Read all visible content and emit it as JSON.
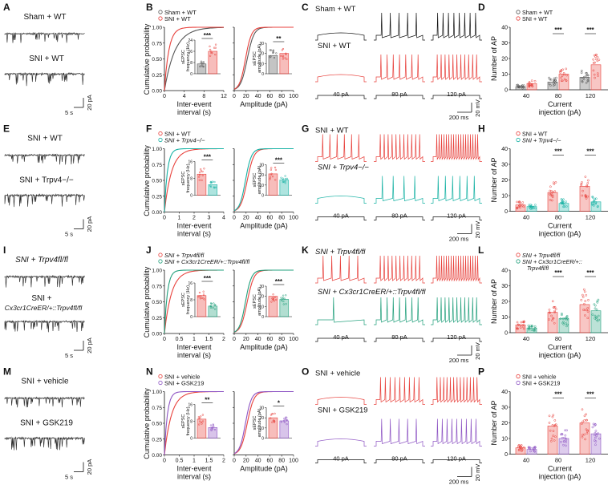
{
  "colors": {
    "sham": "#555555",
    "sni": "#e8413c",
    "ko": "#17b2a4",
    "cko": "#22a07c",
    "gsk": "#8e55c4",
    "black": "#111111"
  },
  "rows": [
    {
      "letters": [
        "A",
        "B",
        "C",
        "D"
      ],
      "traceA": [
        "Sham + WT",
        "SNI + WT"
      ],
      "scaleA": [
        "5 s",
        "20 pA"
      ],
      "cdf": {
        "legend": [
          "Sham + WT",
          "SNI + WT"
        ],
        "legendItalic": false,
        "ylabel": "Cumulative probability",
        "yticks": [
          "0.00",
          "0.25",
          "0.50",
          "0.75",
          "1.00"
        ],
        "xlabel1": [
          "Inter-event",
          "interval (s)"
        ],
        "xticks1": [
          "0",
          "4",
          "8",
          "12"
        ],
        "xlabel2": "Amplitude (pA)",
        "xticks2": [
          "0",
          "20",
          "40",
          "60",
          "80",
          "100"
        ],
        "inset1": {
          "label": [
            "sEPSC",
            "frequency (Hz)"
          ],
          "yticks": [
            "0",
            "8",
            "16",
            "24"
          ],
          "values": [
            7,
            16
          ],
          "sig": "***"
        },
        "inset2": {
          "label": [
            "sEPSC",
            "amplitude (pA)"
          ],
          "yticks": [
            "0",
            "10",
            "20",
            "30"
          ],
          "values": [
            18,
            20
          ],
          "sig": "**"
        }
      },
      "ap": {
        "labels": [
          "Sham + WT",
          "SNI + WT"
        ],
        "labelItalic": false,
        "currents": [
          "40 pA",
          "80 pA",
          "120 pA"
        ],
        "spikes": [
          [
            0,
            5,
            8
          ],
          [
            0,
            7,
            11
          ]
        ],
        "scale": [
          "200 ms",
          "20 mV"
        ]
      },
      "dot": {
        "legend": [
          "Sham + WT",
          "SNI + WT"
        ],
        "legendItalic": false,
        "ylabel": "Number of AP",
        "yticks": [
          "0",
          "10",
          "20",
          "30",
          "40"
        ],
        "xticks": [
          "40",
          "80",
          "120"
        ],
        "xlabel": [
          "Current",
          "injection (pA)"
        ],
        "values": [
          [
            2,
            4
          ],
          [
            5,
            10
          ],
          [
            8,
            16
          ]
        ],
        "sig": [
          "",
          "***",
          "***"
        ]
      },
      "series": [
        "sham",
        "sni"
      ]
    },
    {
      "letters": [
        "E",
        "F",
        "G",
        "H"
      ],
      "traceA": [
        "SNI + WT",
        "SNI + Trpv4−/−"
      ],
      "scaleA": [
        "5 s",
        "20 pA"
      ],
      "cdf": {
        "legend": [
          "SNI + WT",
          "SNI + Trpv4−/−"
        ],
        "legendItalic": true,
        "ylabel": "Cumulative probability",
        "yticks": [
          "0.00",
          "0.25",
          "0.50",
          "0.75",
          "1.00"
        ],
        "xlabel1": [
          "Inter-event",
          "interval (s)"
        ],
        "xticks1": [
          "0",
          "1",
          "2",
          "3",
          "4"
        ],
        "xlabel2": "Amplitude (pA)",
        "xticks2": [
          "0",
          "20",
          "40",
          "60",
          "80",
          "100"
        ],
        "inset1": {
          "label": [
            "sEPSC",
            "frequency (Hz)"
          ],
          "yticks": [
            "0",
            "8",
            "16"
          ],
          "values": [
            10,
            5
          ],
          "sig": "***"
        },
        "inset2": {
          "label": [
            "sEPSC",
            "amplitude (pA)"
          ],
          "yticks": [
            "0",
            "10",
            "20",
            "30"
          ],
          "values": [
            21,
            15
          ],
          "sig": "***"
        }
      },
      "ap": {
        "labels": [
          "SNI + WT",
          "SNI + Trpv4−/−"
        ],
        "labelItalic": true,
        "currents": [
          "40 pA",
          "80 pA",
          "120 pA"
        ],
        "spikes": [
          [
            6,
            11,
            18
          ],
          [
            0,
            4,
            6
          ]
        ],
        "scale": [
          "200 ms",
          "20 mV"
        ]
      },
      "dot": {
        "legend": [
          "SNI + WT",
          "SNI + Trpv4−/−"
        ],
        "legendItalic": true,
        "ylabel": "Number of AP",
        "yticks": [
          "0",
          "10",
          "20",
          "30",
          "40"
        ],
        "xticks": [
          "40",
          "80",
          "120"
        ],
        "xlabel": [
          "Current",
          "injection (pA)"
        ],
        "values": [
          [
            4,
            3
          ],
          [
            12,
            5
          ],
          [
            16,
            6
          ]
        ],
        "sig": [
          "",
          "***",
          "***"
        ]
      },
      "series": [
        "sni",
        "ko"
      ]
    },
    {
      "letters": [
        "I",
        "J",
        "K",
        "L"
      ],
      "traceA": [
        "SNI + Trpv4fl/fl",
        "SNI +",
        "Cx3cr1CreER/+::Trpv4fl/fl"
      ],
      "scaleA": [
        "5 s",
        "20 pA"
      ],
      "cdf": {
        "legend": [
          "SNI + Trpv4fl/fl",
          "SNI + Cx3cr1CreER/+::Trpv4fl/fl"
        ],
        "legendItalic": true,
        "ylabel": "Cumulative probability",
        "yticks": [
          "0.00",
          "0.25",
          "0.50",
          "0.75",
          "1.00"
        ],
        "xlabel1": [
          "Inter-event",
          "interval (s)"
        ],
        "xticks1": [
          "0",
          "0.5",
          "1",
          "1.5",
          "2"
        ],
        "xlabel2": "Amplitude (pA)",
        "xticks2": [
          "0",
          "20",
          "40",
          "60",
          "80",
          "100"
        ],
        "inset1": {
          "label": [
            "sEPSC",
            "frequency (Hz)"
          ],
          "yticks": [
            "0",
            "8",
            "16"
          ],
          "values": [
            10,
            5
          ],
          "sig": "***"
        },
        "inset2": {
          "label": [
            "sEPSC",
            "amplitude (pA)"
          ],
          "yticks": [
            "0",
            "10",
            "20",
            "30"
          ],
          "values": [
            20,
            17
          ],
          "sig": "***"
        }
      },
      "ap": {
        "labels": [
          "SNI + Trpv4fl/fl",
          "SNI + Cx3cr1CreER/+::Trpv4fl/fl"
        ],
        "labelItalic": true,
        "currents": [
          "40 pA",
          "80 pA",
          "120 pA"
        ],
        "spikes": [
          [
            5,
            11,
            18
          ],
          [
            1,
            7,
            11
          ]
        ],
        "scale": [
          "200 ms",
          "20 mV"
        ]
      },
      "dot": {
        "legend": [
          "SNI + Trpv4fl/fl",
          "SNI + Cx3cr1CreER/+::",
          "Trpv4fl/fl"
        ],
        "legendItalic": true,
        "ylabel": "Number of AP",
        "yticks": [
          "0",
          "10",
          "20",
          "30",
          "40"
        ],
        "xticks": [
          "40",
          "80",
          "120"
        ],
        "xlabel": [
          "Current",
          "injection (pA)"
        ],
        "values": [
          [
            5,
            3
          ],
          [
            13,
            9
          ],
          [
            18,
            14
          ]
        ],
        "sig": [
          "",
          "***",
          "***"
        ]
      },
      "series": [
        "sni",
        "cko"
      ]
    },
    {
      "letters": [
        "M",
        "N",
        "O",
        "P"
      ],
      "traceA": [
        "SNI + vehicle",
        "SNI + GSK219"
      ],
      "scaleA": [
        "5 s",
        "20 pA"
      ],
      "cdf": {
        "legend": [
          "SNI + vehicle",
          "SNI + GSK219"
        ],
        "legendItalic": false,
        "ylabel": "Cumulative probability",
        "yticks": [
          "0.00",
          "0.25",
          "0.50",
          "0.75",
          "1.00"
        ],
        "xlabel1": [
          "Inter-event",
          "interval (s)"
        ],
        "xticks1": [
          "0",
          "0.5",
          "1",
          "1.5",
          "2"
        ],
        "xlabel2": "Amplitude (pA)",
        "xticks2": [
          "0",
          "20",
          "40",
          "60",
          "80",
          "100"
        ],
        "inset1": {
          "label": [
            "sEPSC",
            "frequency (Hz)"
          ],
          "yticks": [
            "0",
            "8",
            "16"
          ],
          "values": [
            9,
            5
          ],
          "sig": "**"
        },
        "inset2": {
          "label": [
            "sEPSC",
            "amplitude (pA)"
          ],
          "yticks": [
            "0",
            "10",
            "20",
            "30"
          ],
          "values": [
            20,
            17
          ],
          "sig": "*"
        }
      },
      "ap": {
        "labels": [
          "SNI + vehicle",
          "SNI + GSK219"
        ],
        "labelItalic": false,
        "currents": [
          "40 pA",
          "80 pA",
          "120 pA"
        ],
        "spikes": [
          [
            0,
            9,
            13
          ],
          [
            0,
            5,
            9
          ]
        ],
        "scale": [
          "200 ms",
          "20 mV"
        ]
      },
      "dot": {
        "legend": [
          "SNI + vehicle",
          "SNI + GSK219"
        ],
        "legendItalic": false,
        "ylabel": "Number of AP",
        "yticks": [
          "0",
          "10",
          "20",
          "30",
          "40"
        ],
        "xticks": [
          "40",
          "80",
          "120"
        ],
        "xlabel": [
          "Current",
          "injection (pA)"
        ],
        "values": [
          [
            4,
            3
          ],
          [
            18,
            10
          ],
          [
            20,
            13
          ]
        ],
        "sig": [
          "",
          "***",
          "***"
        ]
      },
      "series": [
        "sni",
        "gsk"
      ]
    }
  ]
}
